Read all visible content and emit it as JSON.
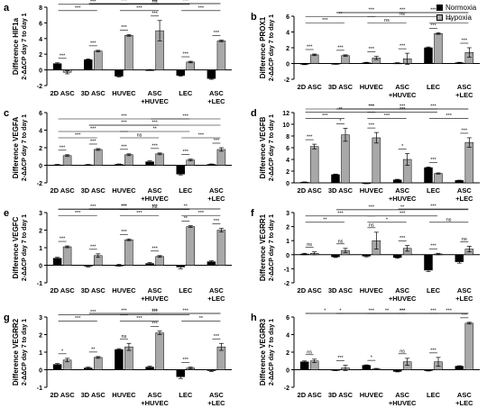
{
  "legend": {
    "normoxia": {
      "label": "Normoxia",
      "color": "#000000"
    },
    "hypoxia": {
      "label": "Hypoxia",
      "color": "#a8a8a8"
    }
  },
  "colors": {
    "normoxia": "#000000",
    "hypoxia": "#a8a8a8",
    "axis": "#000000"
  },
  "ylabel_line2": "2-ΔΔCP day 7 to day 1",
  "chart_data": [
    {
      "type": "bar",
      "panel_label": "a",
      "title": "",
      "ylabel": "Difference HIF1a",
      "ylim": [
        -2,
        8
      ],
      "yticks": [
        -2,
        0,
        2,
        4,
        6,
        8
      ],
      "categories": [
        "2D ASC",
        "3D ASC",
        "HUVEC",
        "ASC\n+HUVEC",
        "LEC",
        "ASC\n+LEC"
      ],
      "series": [
        {
          "name": "Normoxia",
          "values": [
            0.8,
            1.3,
            -0.8,
            0.0,
            -0.7,
            -1.1
          ],
          "errors": [
            0.1,
            0.1,
            0.1,
            0.05,
            0.1,
            0.1
          ]
        },
        {
          "name": "Hypoxia",
          "values": [
            -0.3,
            2.4,
            4.4,
            5.0,
            1.0,
            3.7
          ],
          "errors": [
            0.2,
            0.1,
            0.1,
            1.3,
            0.1,
            0.1
          ]
        }
      ],
      "annotations": [
        "***",
        "***",
        "***",
        "***",
        "***",
        "***",
        "***",
        "***",
        "***",
        "***",
        "***",
        "***",
        "***",
        "ns"
      ]
    },
    {
      "type": "bar",
      "panel_label": "b",
      "title": "",
      "ylabel": "Difference PROX1",
      "ylim": [
        -2,
        6
      ],
      "yticks": [
        -2,
        0,
        2,
        4,
        6
      ],
      "categories": [
        "2D ASC",
        "3D ASC",
        "HUVEC",
        "ASC\n+HUVEC",
        "LEC",
        "ASC\n+LEC"
      ],
      "series": [
        {
          "name": "Normoxia",
          "values": [
            -0.1,
            -0.05,
            0.1,
            0.05,
            2.0,
            0.1
          ],
          "errors": [
            0.05,
            0.05,
            0.05,
            0.05,
            0.1,
            0.05
          ]
        },
        {
          "name": "Hypoxia",
          "values": [
            1.1,
            1.0,
            0.7,
            0.6,
            3.8,
            1.4
          ],
          "errors": [
            0.1,
            0.1,
            0.2,
            0.7,
            0.1,
            0.6
          ]
        }
      ],
      "annotations": [
        "***",
        "***",
        "***",
        "***",
        "***",
        "***",
        "***",
        "ns",
        "***",
        "**",
        "***",
        "***",
        "ns",
        "***"
      ]
    },
    {
      "type": "bar",
      "panel_label": "c",
      "title": "",
      "ylabel": "Difference VEGFA",
      "ylim": [
        -2,
        6
      ],
      "yticks": [
        -2,
        0,
        2,
        4,
        6
      ],
      "categories": [
        "2D ASC",
        "3D ASC",
        "HUVEC",
        "ASC\n+HUVEC",
        "LEC",
        "ASC\n+LEC"
      ],
      "series": [
        {
          "name": "Normoxia",
          "values": [
            0.05,
            0.05,
            0.1,
            0.4,
            -1.0,
            0.1
          ],
          "errors": [
            0.05,
            0.05,
            0.05,
            0.1,
            0.1,
            0.05
          ]
        },
        {
          "name": "Hypoxia",
          "values": [
            1.1,
            1.8,
            1.2,
            1.3,
            0.6,
            1.8
          ],
          "errors": [
            0.1,
            0.1,
            0.1,
            0.1,
            0.1,
            0.2
          ]
        }
      ],
      "annotations": [
        "***",
        "***",
        "***",
        "***",
        "***",
        "***",
        "***",
        "ns",
        "***",
        "***",
        "***",
        "***",
        "**",
        "***",
        "***"
      ]
    },
    {
      "type": "bar",
      "panel_label": "d",
      "title": "",
      "ylabel": "Difference VEGFB",
      "ylim": [
        0,
        12
      ],
      "yticks": [
        0,
        2,
        4,
        6,
        8,
        10,
        12
      ],
      "categories": [
        "2D ASC",
        "3D ASC",
        "HUVEC",
        "ASC\n+HUVEC",
        "LEC",
        "ASC\n+LEC"
      ],
      "series": [
        {
          "name": "Normoxia",
          "values": [
            0.1,
            1.4,
            -0.1,
            0.5,
            2.6,
            0.4
          ],
          "errors": [
            0.05,
            0.1,
            0.05,
            0.1,
            0.1,
            0.05
          ]
        },
        {
          "name": "Hypoxia",
          "values": [
            6.2,
            8.2,
            7.7,
            4.0,
            1.6,
            6.9
          ],
          "errors": [
            0.4,
            1.1,
            0.9,
            1.0,
            0.1,
            0.8
          ]
        }
      ],
      "annotations": [
        "***",
        "*",
        "***",
        "*",
        "***",
        "***",
        "***",
        "***",
        "***",
        "**",
        "***",
        "***",
        "***",
        "***",
        "***"
      ]
    },
    {
      "type": "bar",
      "panel_label": "e",
      "title": "",
      "ylabel": "Difference VEGFC",
      "ylim": [
        -1,
        3
      ],
      "yticks": [
        -1,
        0,
        1,
        2,
        3
      ],
      "categories": [
        "2D ASC",
        "3D ASC",
        "HUVEC",
        "ASC\n+HUVEC",
        "LEC",
        "ASC\n+LEC"
      ],
      "series": [
        {
          "name": "Normoxia",
          "values": [
            0.4,
            -0.05,
            0.0,
            0.1,
            -0.1,
            0.2
          ],
          "errors": [
            0.05,
            0.05,
            0.05,
            0.05,
            0.1,
            0.05
          ]
        },
        {
          "name": "Hypoxia",
          "values": [
            1.05,
            0.55,
            1.45,
            0.5,
            2.2,
            2.0
          ],
          "errors": [
            0.05,
            0.1,
            0.05,
            0.05,
            0.05,
            0.1
          ]
        }
      ],
      "annotations": [
        "***",
        "***",
        "***",
        "***",
        "**",
        "***",
        "***",
        "***",
        "***",
        "***",
        "***",
        "**",
        "ns",
        "***",
        "***"
      ]
    },
    {
      "type": "bar",
      "panel_label": "f",
      "title": "",
      "ylabel": "Difference VEGRR1",
      "ylim": [
        -2,
        3
      ],
      "yticks": [
        -2,
        -1,
        0,
        1,
        2,
        3
      ],
      "categories": [
        "2D ASC",
        "3D ASC",
        "HUVEC",
        "ASC\n+HUVEC",
        "LEC",
        "ASC\n+LEC"
      ],
      "series": [
        {
          "name": "Normoxia",
          "values": [
            0.05,
            -0.15,
            -0.1,
            -0.2,
            -1.1,
            -0.5
          ],
          "errors": [
            0.05,
            0.05,
            0.05,
            0.05,
            0.1,
            0.1
          ]
        },
        {
          "name": "Hypoxia",
          "values": [
            0.1,
            0.3,
            1.0,
            0.45,
            0.05,
            0.4
          ],
          "errors": [
            0.1,
            0.15,
            0.6,
            0.2,
            0.05,
            0.2
          ]
        }
      ],
      "annotations": [
        "ns",
        "ns",
        "ns",
        "***",
        "***",
        "ns",
        "**",
        "*",
        "ns",
        "***",
        "***",
        "***",
        "***",
        "**"
      ]
    },
    {
      "type": "bar",
      "panel_label": "g",
      "title": "",
      "ylabel": "Difference VEGRR2",
      "ylim": [
        -1,
        3
      ],
      "yticks": [
        -1,
        0,
        1,
        2,
        3
      ],
      "categories": [
        "2D ASC",
        "3D ASC",
        "HUVEC",
        "ASC\n+HUVEC",
        "LEC",
        "ASC\n+LEC"
      ],
      "series": [
        {
          "name": "Normoxia",
          "values": [
            0.3,
            0.1,
            1.15,
            0.15,
            -0.4,
            -0.05
          ],
          "errors": [
            0.05,
            0.05,
            0.05,
            0.05,
            0.1,
            0.05
          ]
        },
        {
          "name": "Hypoxia",
          "values": [
            0.55,
            0.7,
            1.3,
            2.1,
            0.1,
            1.3
          ],
          "errors": [
            0.1,
            0.05,
            0.2,
            0.1,
            0.05,
            0.2
          ]
        }
      ],
      "annotations": [
        "*",
        "**",
        "ns",
        "***",
        "***",
        "***",
        "***",
        "***",
        "**",
        "***",
        "***",
        "***",
        "***",
        "***"
      ]
    },
    {
      "type": "bar",
      "panel_label": "h",
      "title": "",
      "ylabel": "Difference VEGRR3",
      "ylim": [
        -2,
        6
      ],
      "yticks": [
        -2,
        0,
        2,
        4,
        6
      ],
      "categories": [
        "2D ASC",
        "3D ASC",
        "HUVEC",
        "ASC\n+HUVEC",
        "LEC",
        "ASC\n+LEC"
      ],
      "series": [
        {
          "name": "Normoxia",
          "values": [
            0.9,
            -0.05,
            0.5,
            -0.2,
            -0.1,
            0.4
          ],
          "errors": [
            0.1,
            0.05,
            0.05,
            0.05,
            0.05,
            0.05
          ]
        },
        {
          "name": "Hypoxia",
          "values": [
            1.0,
            0.2,
            0.1,
            0.9,
            0.9,
            5.3
          ],
          "errors": [
            0.2,
            0.3,
            0.05,
            0.4,
            0.5,
            0.1
          ]
        }
      ],
      "annotations": [
        "ns",
        "***",
        "*",
        "ns",
        "***",
        "***",
        "*",
        "**",
        "***",
        "*",
        "***",
        "***",
        "***",
        "***"
      ]
    }
  ]
}
